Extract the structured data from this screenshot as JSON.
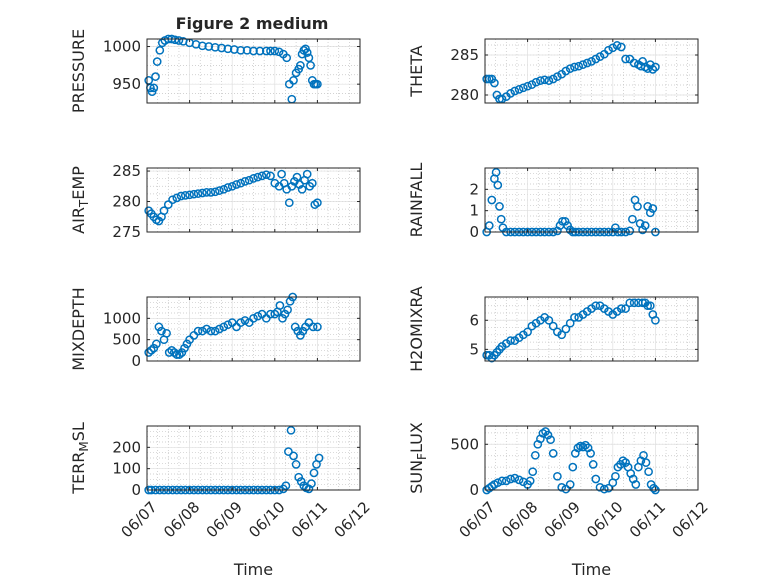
{
  "figure_title": "Figure 2 medium",
  "x_tick_labels": [
    "06/07",
    "06/08",
    "06/09",
    "06/10",
    "06/11",
    "06/12"
  ],
  "chart_data": [
    {
      "type": "scatter",
      "title": "Figure 2 medium",
      "ylabel": "PRESSURE",
      "xlabel": "",
      "xlim": [
        0,
        5
      ],
      "ylim": [
        925,
        1010
      ],
      "yticks": [
        950,
        1000
      ],
      "grid": true,
      "series": [
        {
          "x": [
            0.04,
            0.08,
            0.12,
            0.16,
            0.2,
            0.24,
            0.3,
            0.36,
            0.42,
            0.5,
            0.58,
            0.66,
            0.75,
            0.85,
            1,
            1.15,
            1.3,
            1.45,
            1.6,
            1.75,
            1.9,
            2.05,
            2.2,
            2.35,
            2.5,
            2.65,
            2.8,
            2.9,
            3.0,
            3.1,
            3.2,
            3.28,
            3.34,
            3.4,
            3.44,
            3.5,
            3.56,
            3.6,
            3.64,
            3.68,
            3.72,
            3.76,
            3.8,
            3.84,
            3.88,
            3.92,
            3.96,
            4.0
          ],
          "y": [
            955,
            945,
            940,
            945,
            960,
            980,
            995,
            1005,
            1008,
            1010,
            1010,
            1009,
            1008,
            1007,
            1005,
            1003,
            1001,
            1000,
            999,
            998,
            997,
            996,
            995,
            995,
            994,
            994,
            994,
            994,
            994,
            993,
            990,
            985,
            950,
            930,
            955,
            965,
            970,
            975,
            990,
            995,
            997,
            992,
            985,
            975,
            955,
            950,
            950,
            950
          ]
        }
      ]
    },
    {
      "type": "scatter",
      "ylabel": "THETA",
      "xlabel": "",
      "xlim": [
        0,
        5
      ],
      "ylim": [
        279,
        287
      ],
      "yticks": [
        280,
        285
      ],
      "grid": true,
      "series": [
        {
          "x": [
            0.04,
            0.1,
            0.16,
            0.22,
            0.28,
            0.34,
            0.4,
            0.5,
            0.6,
            0.7,
            0.8,
            0.9,
            1.0,
            1.1,
            1.2,
            1.3,
            1.4,
            1.5,
            1.6,
            1.7,
            1.8,
            1.9,
            2.0,
            2.1,
            2.2,
            2.3,
            2.4,
            2.5,
            2.6,
            2.7,
            2.8,
            2.9,
            3.0,
            3.1,
            3.2,
            3.3,
            3.4,
            3.5,
            3.6,
            3.66,
            3.7,
            3.76,
            3.82,
            3.88,
            3.94,
            4.0
          ],
          "y": [
            282,
            282,
            282,
            281.5,
            280,
            279.5,
            279.5,
            279.8,
            280.2,
            280.5,
            280.7,
            280.9,
            281.1,
            281.3,
            281.6,
            281.8,
            281.9,
            281.8,
            282,
            282.3,
            282.6,
            283,
            283.3,
            283.5,
            283.6,
            283.8,
            284,
            284.2,
            284.5,
            284.8,
            285.1,
            285.6,
            285.9,
            286.2,
            286,
            284.5,
            284.5,
            284,
            283.8,
            283.6,
            284.2,
            283.5,
            283.3,
            283.8,
            283.2,
            283.5
          ]
        }
      ]
    },
    {
      "type": "scatter",
      "ylabel": "AIR_TEMP",
      "ylabel_parts": [
        "AIR",
        "T",
        "EMP"
      ],
      "xlabel": "",
      "xlim": [
        0,
        5
      ],
      "ylim": [
        275,
        285.5
      ],
      "yticks": [
        275,
        280,
        285
      ],
      "grid": true,
      "series": [
        {
          "x": [
            0.04,
            0.1,
            0.16,
            0.22,
            0.28,
            0.34,
            0.4,
            0.5,
            0.6,
            0.7,
            0.8,
            0.9,
            1.0,
            1.1,
            1.2,
            1.3,
            1.4,
            1.5,
            1.6,
            1.7,
            1.8,
            1.9,
            2.0,
            2.1,
            2.2,
            2.3,
            2.4,
            2.5,
            2.6,
            2.7,
            2.8,
            2.9,
            3.0,
            3.1,
            3.16,
            3.22,
            3.28,
            3.34,
            3.4,
            3.46,
            3.52,
            3.58,
            3.64,
            3.7,
            3.76,
            3.82,
            3.88,
            3.94,
            4.0
          ],
          "y": [
            278.5,
            278,
            277.5,
            277,
            276.8,
            277.5,
            278.5,
            279.5,
            280.3,
            280.6,
            280.9,
            281,
            281.1,
            281.2,
            281.3,
            281.4,
            281.5,
            281.5,
            281.6,
            281.8,
            282,
            282.3,
            282.5,
            282.8,
            283,
            283.3,
            283.5,
            283.8,
            284,
            284.2,
            284.4,
            284.2,
            283,
            282.5,
            284.5,
            283,
            282,
            279.8,
            282.5,
            283.3,
            284,
            282.8,
            282,
            283.5,
            284.5,
            282.5,
            283,
            279.5,
            279.8
          ]
        }
      ]
    },
    {
      "type": "scatter",
      "ylabel": "RAINFALL",
      "xlabel": "",
      "xlim": [
        0,
        5
      ],
      "ylim": [
        0,
        3
      ],
      "yticks": [
        0,
        1,
        2
      ],
      "grid": true,
      "series": [
        {
          "x": [
            0.04,
            0.1,
            0.16,
            0.22,
            0.26,
            0.3,
            0.34,
            0.38,
            0.42,
            0.5,
            0.6,
            0.7,
            0.8,
            0.9,
            1.0,
            1.1,
            1.2,
            1.3,
            1.4,
            1.5,
            1.6,
            1.7,
            1.76,
            1.82,
            1.88,
            1.94,
            2.0,
            2.06,
            2.12,
            2.2,
            2.3,
            2.4,
            2.5,
            2.6,
            2.7,
            2.8,
            2.9,
            3.0,
            3.06,
            3.12,
            3.2,
            3.3,
            3.4,
            3.46,
            3.52,
            3.58,
            3.64,
            3.7,
            3.76,
            3.82,
            3.88,
            3.94,
            4.0
          ],
          "y": [
            0,
            0.3,
            1.5,
            2.5,
            2.8,
            2.2,
            1.2,
            0.6,
            0.2,
            0,
            0,
            0,
            0,
            0,
            0,
            0,
            0,
            0,
            0,
            0,
            0,
            0.05,
            0.3,
            0.5,
            0.5,
            0.3,
            0.1,
            0,
            0,
            0,
            0,
            0,
            0,
            0,
            0,
            0,
            0,
            0,
            0.2,
            0,
            0,
            0,
            0.05,
            0.6,
            1.5,
            1.2,
            0.4,
            0.1,
            0.3,
            1.2,
            0.9,
            1.1,
            0
          ]
        }
      ]
    },
    {
      "type": "scatter",
      "ylabel": "MIXDEPTH",
      "xlabel": "",
      "xlim": [
        0,
        5
      ],
      "ylim": [
        0,
        1500
      ],
      "yticks": [
        0,
        500,
        1000
      ],
      "grid": true,
      "series": [
        {
          "x": [
            0.04,
            0.1,
            0.16,
            0.22,
            0.28,
            0.34,
            0.4,
            0.46,
            0.52,
            0.58,
            0.64,
            0.7,
            0.76,
            0.82,
            0.88,
            0.94,
            1.0,
            1.1,
            1.2,
            1.3,
            1.4,
            1.5,
            1.6,
            1.7,
            1.8,
            1.9,
            2.0,
            2.1,
            2.2,
            2.3,
            2.4,
            2.5,
            2.6,
            2.7,
            2.8,
            2.9,
            3.0,
            3.06,
            3.12,
            3.18,
            3.24,
            3.3,
            3.36,
            3.42,
            3.48,
            3.54,
            3.6,
            3.66,
            3.72,
            3.8,
            3.9,
            4.0
          ],
          "y": [
            200,
            250,
            300,
            400,
            800,
            700,
            500,
            650,
            200,
            250,
            200,
            150,
            150,
            200,
            300,
            400,
            500,
            600,
            700,
            700,
            750,
            700,
            700,
            750,
            800,
            850,
            900,
            800,
            900,
            950,
            900,
            1000,
            1050,
            1100,
            1000,
            1100,
            1100,
            1150,
            1300,
            1000,
            1100,
            1200,
            1400,
            1500,
            800,
            700,
            600,
            700,
            800,
            900,
            800,
            800
          ]
        }
      ]
    },
    {
      "type": "scatter",
      "ylabel": "H2OMIXRA",
      "xlabel": "",
      "xlim": [
        0,
        5
      ],
      "ylim": [
        4.6,
        6.8
      ],
      "yticks": [
        5,
        6
      ],
      "grid": true,
      "series": [
        {
          "x": [
            0.04,
            0.1,
            0.16,
            0.22,
            0.28,
            0.34,
            0.4,
            0.5,
            0.6,
            0.7,
            0.8,
            0.9,
            1.0,
            1.1,
            1.2,
            1.3,
            1.4,
            1.5,
            1.6,
            1.7,
            1.8,
            1.9,
            2.0,
            2.1,
            2.2,
            2.3,
            2.4,
            2.5,
            2.6,
            2.7,
            2.8,
            2.9,
            3.0,
            3.1,
            3.2,
            3.3,
            3.4,
            3.5,
            3.6,
            3.7,
            3.76,
            3.82,
            3.88,
            3.94,
            4.0
          ],
          "y": [
            4.8,
            4.8,
            4.7,
            4.8,
            4.9,
            5,
            5.1,
            5.2,
            5.3,
            5.3,
            5.4,
            5.5,
            5.6,
            5.8,
            5.9,
            6,
            6.1,
            6,
            5.8,
            5.6,
            5.5,
            5.7,
            5.9,
            6.1,
            6.1,
            6.2,
            6.3,
            6.4,
            6.5,
            6.5,
            6.4,
            6.3,
            6.2,
            6.3,
            6.4,
            6.4,
            6.6,
            6.6,
            6.6,
            6.6,
            6.6,
            6.5,
            6.5,
            6.2,
            6
          ]
        }
      ]
    },
    {
      "type": "scatter",
      "ylabel": "TERR_MSL",
      "ylabel_parts": [
        "TERR",
        "M",
        "SL"
      ],
      "xlabel": "Time",
      "xlim": [
        0,
        5
      ],
      "ylim": [
        0,
        300
      ],
      "yticks": [
        0,
        100,
        200
      ],
      "grid": true,
      "series": [
        {
          "x": [
            0.04,
            0.1,
            0.2,
            0.3,
            0.4,
            0.5,
            0.6,
            0.7,
            0.8,
            0.9,
            1.0,
            1.1,
            1.2,
            1.3,
            1.4,
            1.5,
            1.6,
            1.7,
            1.8,
            1.9,
            2.0,
            2.1,
            2.2,
            2.3,
            2.4,
            2.5,
            2.6,
            2.7,
            2.8,
            2.9,
            3.0,
            3.1,
            3.2,
            3.26,
            3.32,
            3.38,
            3.44,
            3.5,
            3.56,
            3.62,
            3.68,
            3.74,
            3.8,
            3.86,
            3.92,
            3.98,
            4.04
          ],
          "y": [
            0,
            0,
            0,
            0,
            0,
            0,
            0,
            0,
            0,
            0,
            0,
            0,
            0,
            0,
            0,
            0,
            0,
            0,
            0,
            0,
            0,
            0,
            0,
            0,
            0,
            0,
            0,
            0,
            0,
            0,
            0,
            0,
            5,
            20,
            180,
            280,
            160,
            120,
            60,
            40,
            20,
            10,
            5,
            30,
            80,
            120,
            150
          ]
        }
      ]
    },
    {
      "type": "scatter",
      "ylabel": "SUN_FLUX",
      "ylabel_parts": [
        "SUN",
        "F",
        "LUX"
      ],
      "xlabel": "Time",
      "xlim": [
        0,
        5
      ],
      "ylim": [
        0,
        700
      ],
      "yticks": [
        0,
        500
      ],
      "grid": true,
      "series": [
        {
          "x": [
            0.04,
            0.1,
            0.16,
            0.22,
            0.3,
            0.4,
            0.5,
            0.6,
            0.7,
            0.8,
            0.9,
            1.0,
            1.06,
            1.12,
            1.18,
            1.24,
            1.3,
            1.36,
            1.42,
            1.48,
            1.54,
            1.6,
            1.7,
            1.8,
            1.9,
            2.0,
            2.06,
            2.12,
            2.18,
            2.24,
            2.3,
            2.36,
            2.42,
            2.48,
            2.54,
            2.6,
            2.7,
            2.8,
            2.9,
            3.0,
            3.06,
            3.12,
            3.18,
            3.24,
            3.3,
            3.36,
            3.42,
            3.48,
            3.54,
            3.6,
            3.66,
            3.72,
            3.78,
            3.84,
            3.9,
            3.96,
            4.0
          ],
          "y": [
            0,
            20,
            40,
            60,
            80,
            100,
            100,
            120,
            130,
            110,
            90,
            60,
            100,
            200,
            380,
            500,
            560,
            620,
            640,
            600,
            550,
            400,
            150,
            30,
            10,
            60,
            250,
            400,
            460,
            480,
            470,
            490,
            460,
            400,
            280,
            120,
            30,
            10,
            20,
            80,
            150,
            250,
            280,
            320,
            300,
            250,
            180,
            120,
            60,
            250,
            320,
            380,
            300,
            200,
            60,
            20,
            0
          ]
        }
      ]
    }
  ]
}
